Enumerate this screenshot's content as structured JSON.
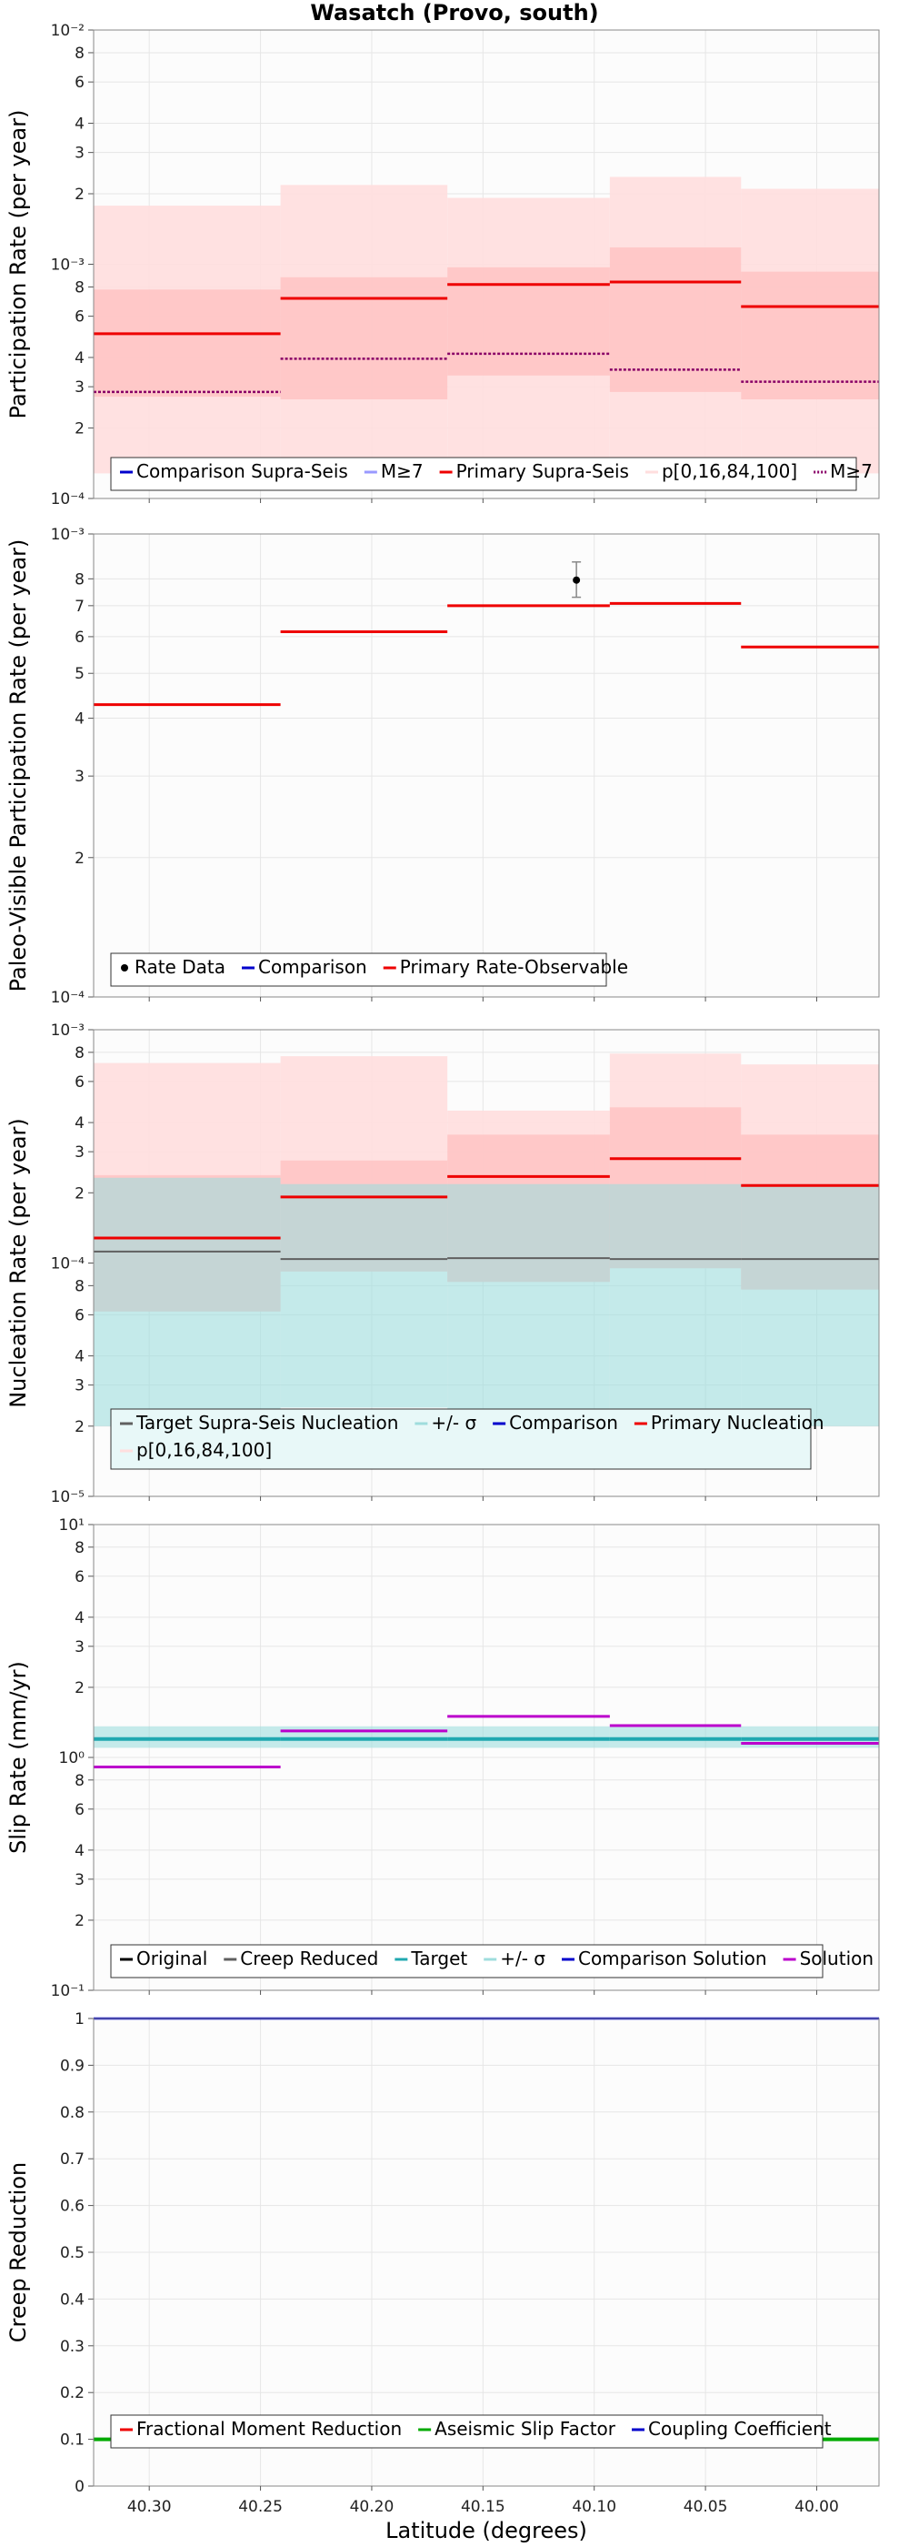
{
  "title": "Wasatch (Provo, south)",
  "xlabel": "Latitude (degrees)",
  "x_ticks": [
    "40.30",
    "40.25",
    "40.20",
    "40.15",
    "40.10",
    "40.05",
    "40.00"
  ],
  "colors": {
    "primary": "#ee0000",
    "comparison": "#0000cc",
    "band_outer": "#ffdede",
    "band_inner": "#ffb4b4",
    "target_band": "#9fdddd",
    "target": "#20a8b0",
    "gray": "#606060",
    "purple": "#bb00cc",
    "green": "#00aa00"
  },
  "chart_data": [
    {
      "type": "line",
      "id": "participation",
      "ylabel": "Participation Rate (per year)",
      "scale": "log",
      "ylim": [
        0.0001,
        0.01
      ],
      "x_bins": [
        [
          40.325,
          40.241
        ],
        [
          40.241,
          40.166
        ],
        [
          40.166,
          40.093
        ],
        [
          40.093,
          40.034
        ],
        [
          40.034,
          39.972
        ]
      ],
      "series": [
        {
          "name": "Primary Supra-Seis",
          "values": [
            0.000505,
            0.000715,
            0.00082,
            0.00084,
            0.00066
          ]
        },
        {
          "name": "M≥7",
          "values": [
            0.000285,
            0.000395,
            0.000415,
            0.000355,
            0.000315
          ]
        }
      ],
      "bands": [
        {
          "name": "p[0,16,84,100]",
          "lower": [
            0.000128,
            0.000145,
            0.000135,
            0.000128,
            0.000128
          ],
          "upper": [
            0.00178,
            0.00218,
            0.00192,
            0.00236,
            0.0021
          ],
          "level": "outer"
        },
        {
          "name": "p[0,16,84,100]",
          "lower": [
            0.000272,
            0.000265,
            0.000335,
            0.000285,
            0.000265
          ],
          "upper": [
            0.00078,
            0.00088,
            0.00097,
            0.00118,
            0.00093
          ],
          "level": "inner"
        }
      ],
      "tick_labels": [
        "10⁻⁴",
        "2",
        "3",
        "4",
        "6",
        "8",
        "10⁻³",
        "2",
        "3",
        "4",
        "6",
        "8",
        "10⁻²"
      ],
      "legend": [
        "Comparison Supra-Seis",
        "M≥7",
        "Primary Supra-Seis",
        "p[0,16,84,100]",
        "M≥7"
      ]
    },
    {
      "type": "line",
      "id": "paleo",
      "ylabel": "Paleo-Visible Participation Rate (per year)",
      "scale": "log",
      "ylim": [
        0.0001,
        0.001
      ],
      "x_bins": [
        [
          40.325,
          40.241
        ],
        [
          40.241,
          40.166
        ],
        [
          40.166,
          40.093
        ],
        [
          40.093,
          40.034
        ],
        [
          40.034,
          39.972
        ]
      ],
      "series": [
        {
          "name": "Primary Rate-Observable",
          "values": [
            0.000428,
            0.000615,
            0.0007,
            0.000708,
            0.00057
          ]
        }
      ],
      "rate_data": {
        "name": "Rate Data",
        "x": 40.108,
        "y": 0.000795,
        "y_low": 0.00073,
        "y_high": 0.00087
      },
      "tick_labels": [
        "10⁻⁴",
        "2",
        "3",
        "4",
        "5",
        "6",
        "7",
        "8",
        "10⁻³"
      ],
      "legend": [
        "Rate Data",
        "Comparison",
        "Primary Rate-Observable"
      ]
    },
    {
      "type": "line",
      "id": "nucleation",
      "ylabel": "Nucleation Rate (per year)",
      "scale": "log",
      "ylim": [
        1e-05,
        0.001
      ],
      "x_bins": [
        [
          40.325,
          40.241
        ],
        [
          40.241,
          40.166
        ],
        [
          40.166,
          40.093
        ],
        [
          40.093,
          40.034
        ],
        [
          40.034,
          39.972
        ]
      ],
      "series": [
        {
          "name": "Primary Nucleation",
          "values": [
            0.000128,
            0.000192,
            0.000235,
            0.00028,
            0.000215
          ]
        },
        {
          "name": "Target Supra-Seis Nucleation",
          "values": [
            0.000112,
            0.000104,
            0.000105,
            0.000104,
            0.000104
          ]
        }
      ],
      "target_band": {
        "name": "+/- σ",
        "lower": [
          2e-05,
          2.4e-05,
          2.05e-05,
          1.9e-05,
          2e-05
        ],
        "upper": [
          0.000232,
          0.000218,
          0.000218,
          0.000218,
          0.000218
        ]
      },
      "bands": [
        {
          "name": "p[0,16,84,100]",
          "lower": [
            6.2e-05,
            9.2e-05,
            8.3e-05,
            9.5e-05,
            7.7e-05
          ],
          "upper": [
            0.00072,
            0.00077,
            0.00045,
            0.00079,
            0.00071
          ],
          "level": "outer"
        },
        {
          "name": "p[0,16,84,100]",
          "lower": [
            6.2e-05,
            9.2e-05,
            8.3e-05,
            9.5e-05,
            7.7e-05
          ],
          "upper": [
            0.000238,
            0.000275,
            0.000355,
            0.000465,
            0.000355
          ],
          "level": "inner"
        }
      ],
      "tick_labels": [
        "10⁻⁵",
        "2",
        "3",
        "4",
        "6",
        "8",
        "10⁻⁴",
        "2",
        "3",
        "4",
        "6",
        "8",
        "10⁻³"
      ],
      "legend": [
        "Target Supra-Seis Nucleation",
        "+/- σ",
        "Comparison",
        "Primary Nucleation",
        "p[0,16,84,100]"
      ]
    },
    {
      "type": "line",
      "id": "slip",
      "ylabel": "Slip Rate (mm/yr)",
      "scale": "log",
      "ylim": [
        0.1,
        10
      ],
      "x_bins": [
        [
          40.325,
          40.241
        ],
        [
          40.241,
          40.166
        ],
        [
          40.166,
          40.093
        ],
        [
          40.093,
          40.034
        ],
        [
          40.034,
          39.972
        ]
      ],
      "series": [
        {
          "name": "Solution",
          "values": [
            0.91,
            1.3,
            1.5,
            1.37,
            1.15
          ]
        },
        {
          "name": "Target",
          "values": [
            1.2,
            1.2,
            1.2,
            1.2,
            1.2
          ]
        }
      ],
      "target_band": {
        "name": "+/- σ",
        "lower": [
          1.1,
          1.1,
          1.1,
          1.1,
          1.1
        ],
        "upper": [
          1.36,
          1.36,
          1.36,
          1.36,
          1.36
        ]
      },
      "tick_labels": [
        "10⁻¹",
        "2",
        "3",
        "4",
        "6",
        "8",
        "10⁰",
        "2",
        "3",
        "4",
        "6",
        "8",
        "10¹"
      ],
      "legend": [
        "Original",
        "Creep Reduced",
        "Target",
        "+/- σ",
        "Comparison Solution",
        "Solution"
      ]
    },
    {
      "type": "line",
      "id": "creep",
      "ylabel": "Creep Reduction",
      "xlabel": "Latitude (degrees)",
      "scale": "linear",
      "ylim": [
        0,
        1
      ],
      "series": [
        {
          "name": "Coupling Coefficient",
          "value": 1.0
        },
        {
          "name": "Fractional Moment Reduction",
          "value": 0.1
        },
        {
          "name": "Aseismic Slip Factor",
          "value": 0.1
        }
      ],
      "tick_labels": [
        "0",
        "0.1",
        "0.2",
        "0.3",
        "0.4",
        "0.5",
        "0.6",
        "0.7",
        "0.8",
        "0.9",
        "1"
      ],
      "legend": [
        "Fractional Moment Reduction",
        "Aseismic Slip Factor",
        "Coupling Coefficient"
      ]
    }
  ]
}
